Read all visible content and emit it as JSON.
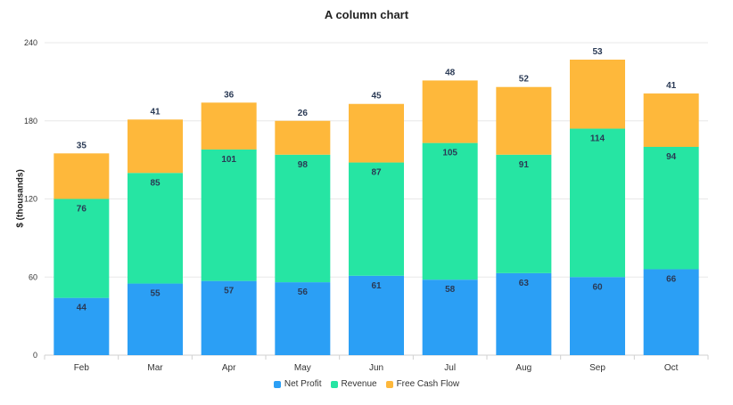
{
  "chart_data": {
    "type": "bar",
    "stacked": true,
    "title": "A column chart",
    "xlabel": "",
    "ylabel": "$ (thousands)",
    "ylim": [
      0,
      240
    ],
    "yticks": [
      0,
      60,
      120,
      180,
      240
    ],
    "grid": true,
    "legend_position": "bottom",
    "categories": [
      "Feb",
      "Mar",
      "Apr",
      "May",
      "Jun",
      "Jul",
      "Aug",
      "Sep",
      "Oct"
    ],
    "series": [
      {
        "name": "Net Profit",
        "color": "#2b9ff5",
        "values": [
          44,
          55,
          57,
          56,
          61,
          58,
          63,
          60,
          66
        ]
      },
      {
        "name": "Revenue",
        "color": "#26e5a3",
        "values": [
          76,
          85,
          101,
          98,
          87,
          105,
          91,
          114,
          94
        ]
      },
      {
        "name": "Free Cash Flow",
        "color": "#feb83b",
        "values": [
          35,
          41,
          36,
          26,
          45,
          48,
          52,
          53,
          41
        ]
      }
    ]
  }
}
